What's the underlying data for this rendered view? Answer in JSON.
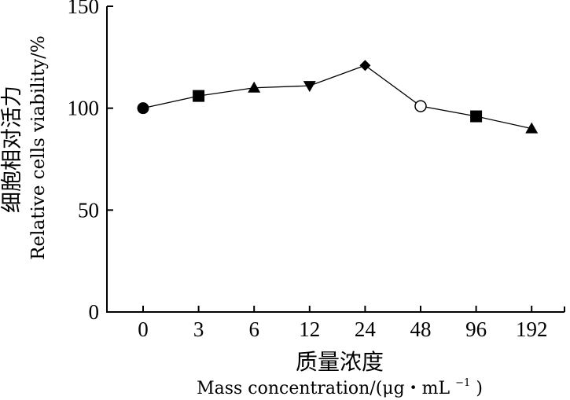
{
  "chart_data": {
    "type": "line",
    "categories": [
      "0",
      "3",
      "6",
      "12",
      "24",
      "48",
      "96",
      "192"
    ],
    "values": [
      100,
      106,
      110,
      111,
      121,
      101,
      96,
      90
    ],
    "markers": [
      "circle-filled",
      "square-filled",
      "triangle-up-filled",
      "triangle-down-filled",
      "diamond-filled",
      "circle-open",
      "square-filled",
      "triangle-up-filled"
    ],
    "ylim": [
      0,
      150
    ],
    "yticks": [
      "0",
      "50",
      "100",
      "150"
    ],
    "ylabel_cn": "细胞相对活力",
    "ylabel_en": "Relative cells viability/%",
    "xlabel_cn": "质量浓度",
    "xlabel_en_main": "Mass concentration/(μg・mL",
    "xlabel_en_sup": "−1",
    "xlabel_en_close": ")",
    "grid": false,
    "line_color": "#000000"
  }
}
